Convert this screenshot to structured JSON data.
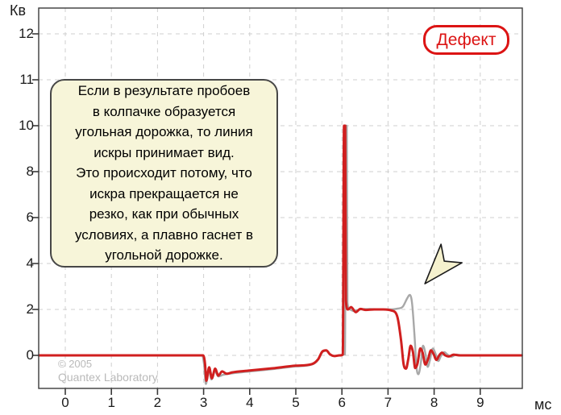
{
  "badge": {
    "label": "Дефект",
    "color": "#dc1414"
  },
  "note": {
    "text": "Если в результате пробоев\nв колпачке образуется\nугольная дорожка, то линия\nискры принимает вид.\nЭто происходит потому, что\nискра прекращается не\nрезко, как при обычных\nусловиях, а плавно гаснет в\nугольной дорожке.",
    "bg": "#f7f5d9"
  },
  "watermark": {
    "line1": "© 2005",
    "line2": "Quantex Laboratory"
  },
  "chart_data": {
    "type": "line",
    "title": "",
    "xlabel": "мс",
    "ylabel": "Кв",
    "x_ticks": [
      0,
      1,
      2,
      3,
      4,
      5,
      6,
      7,
      8,
      9
    ],
    "y_ticks": [
      0,
      2,
      4,
      6,
      8,
      10,
      11,
      12
    ],
    "xlim": [
      -0.57,
      9.9
    ],
    "ylim": [
      -1.45,
      12.7
    ],
    "y_scale_note": "linear 0-10 kV, compressed above 10 (1 kV per division)",
    "grid": true,
    "grid_color": "#cfcfcf",
    "frame_color": "#3a3a3a",
    "series": [
      {
        "name": "spark-line-carbon-track-gray",
        "color": "#a8a8a8",
        "width": 2.4,
        "points": [
          [
            -0.57,
            0
          ],
          [
            2.9,
            0
          ],
          [
            2.97,
            0
          ],
          [
            3.01,
            -0.4
          ],
          [
            3.05,
            -1.25
          ],
          [
            3.11,
            -0.6
          ],
          [
            3.17,
            -1.05
          ],
          [
            3.24,
            -0.68
          ],
          [
            3.32,
            -0.92
          ],
          [
            3.42,
            -0.85
          ],
          [
            3.55,
            -0.8
          ],
          [
            4.0,
            -0.7
          ],
          [
            4.5,
            -0.6
          ],
          [
            5.0,
            -0.48
          ],
          [
            5.35,
            -0.4
          ],
          [
            5.48,
            -0.2
          ],
          [
            5.58,
            0.15
          ],
          [
            5.66,
            0.2
          ],
          [
            5.74,
            0.04
          ],
          [
            5.84,
            -0.03
          ],
          [
            5.95,
            0
          ],
          [
            6.04,
            0.03
          ],
          [
            6.07,
            0.05
          ],
          [
            6.08,
            10
          ],
          [
            6.105,
            10
          ],
          [
            6.12,
            2.3
          ],
          [
            6.17,
            2.0
          ],
          [
            6.25,
            1.93
          ],
          [
            6.4,
            2.0
          ],
          [
            6.6,
            2.02
          ],
          [
            6.85,
            2.0
          ],
          [
            7.05,
            2.0
          ],
          [
            7.2,
            2.03
          ],
          [
            7.32,
            2.12
          ],
          [
            7.42,
            2.5
          ],
          [
            7.47,
            2.63
          ],
          [
            7.52,
            2.3
          ],
          [
            7.57,
            1.0
          ],
          [
            7.62,
            -0.55
          ],
          [
            7.66,
            -0.82
          ],
          [
            7.71,
            -0.35
          ],
          [
            7.76,
            0.42
          ],
          [
            7.81,
            0.1
          ],
          [
            7.86,
            -0.5
          ],
          [
            7.91,
            -0.2
          ],
          [
            7.97,
            0.3
          ],
          [
            8.03,
            0.08
          ],
          [
            8.09,
            -0.25
          ],
          [
            8.15,
            -0.02
          ],
          [
            8.22,
            0.14
          ],
          [
            8.3,
            0.02
          ],
          [
            8.38,
            -0.06
          ],
          [
            8.48,
            0.04
          ],
          [
            8.6,
            0
          ],
          [
            9.0,
            0
          ],
          [
            9.9,
            0
          ]
        ]
      },
      {
        "name": "spark-line-defect-red",
        "color": "#d01f1f",
        "width": 3,
        "points": [
          [
            -0.57,
            0
          ],
          [
            2.9,
            0
          ],
          [
            2.99,
            0
          ],
          [
            3.03,
            -0.35
          ],
          [
            3.06,
            -1.1
          ],
          [
            3.12,
            -0.52
          ],
          [
            3.18,
            -1.0
          ],
          [
            3.25,
            -0.58
          ],
          [
            3.32,
            -0.88
          ],
          [
            3.4,
            -0.7
          ],
          [
            3.5,
            -0.8
          ],
          [
            3.62,
            -0.74
          ],
          [
            4.0,
            -0.66
          ],
          [
            4.5,
            -0.56
          ],
          [
            5.0,
            -0.45
          ],
          [
            5.35,
            -0.38
          ],
          [
            5.48,
            -0.18
          ],
          [
            5.58,
            0.18
          ],
          [
            5.66,
            0.22
          ],
          [
            5.74,
            0.05
          ],
          [
            5.84,
            -0.03
          ],
          [
            5.95,
            0
          ],
          [
            6.02,
            0.03
          ],
          [
            6.045,
            10
          ],
          [
            6.07,
            10
          ],
          [
            6.085,
            2.4
          ],
          [
            6.13,
            2.0
          ],
          [
            6.2,
            2.1
          ],
          [
            6.3,
            1.88
          ],
          [
            6.4,
            2.02
          ],
          [
            6.52,
            1.98
          ],
          [
            6.7,
            2.0
          ],
          [
            6.9,
            2.0
          ],
          [
            7.08,
            1.95
          ],
          [
            7.2,
            1.7
          ],
          [
            7.28,
            0.7
          ],
          [
            7.34,
            -0.4
          ],
          [
            7.39,
            -0.58
          ],
          [
            7.44,
            -0.15
          ],
          [
            7.49,
            0.42
          ],
          [
            7.54,
            0.15
          ],
          [
            7.59,
            -0.55
          ],
          [
            7.64,
            -0.35
          ],
          [
            7.7,
            0.3
          ],
          [
            7.75,
            0.12
          ],
          [
            7.81,
            -0.4
          ],
          [
            7.87,
            -0.15
          ],
          [
            7.93,
            0.22
          ],
          [
            7.99,
            0.05
          ],
          [
            8.05,
            -0.2
          ],
          [
            8.11,
            0.0
          ],
          [
            8.17,
            0.12
          ],
          [
            8.24,
            0.0
          ],
          [
            8.32,
            -0.05
          ],
          [
            8.42,
            0.03
          ],
          [
            8.55,
            0
          ],
          [
            9.0,
            0
          ],
          [
            9.9,
            0
          ]
        ]
      }
    ],
    "annotations": [
      {
        "type": "arrow",
        "points_at": "gray spark tail fading in carbon track",
        "x_ms": 7.8,
        "y_kv": 3.12,
        "direction": "down-left",
        "fill": "#f5f1ce",
        "outline": "#1a1a1a"
      }
    ]
  }
}
